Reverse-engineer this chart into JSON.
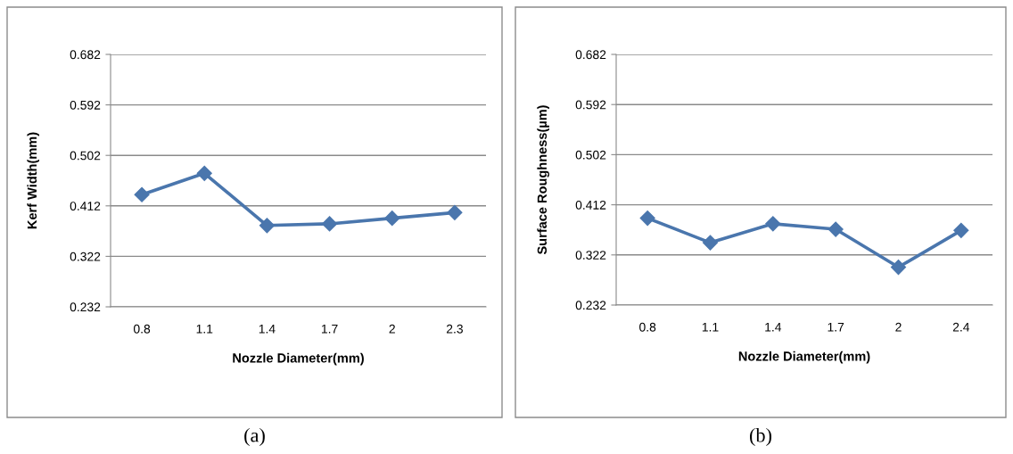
{
  "chart_data": [
    {
      "type": "line",
      "ylabel": "Kerf Width(mm)",
      "xlabel": "Nozzle Diameter(mm)",
      "annotations": [
        "(a)"
      ],
      "categories": [
        "0.8",
        "1.1",
        "1.4",
        "1.7",
        "2",
        "2.3"
      ],
      "series": [
        {
          "color": "#4a76ad",
          "values": [
            0.432,
            0.47,
            0.377,
            0.38,
            0.39,
            0.4
          ]
        }
      ],
      "ylim": [
        0.232,
        0.682
      ],
      "yticks": [
        0.232,
        0.322,
        0.412,
        0.502,
        0.592,
        0.682
      ],
      "grid": "y",
      "marker": "diamond",
      "line_style": "solid"
    },
    {
      "type": "line",
      "ylabel": "Surface Roughness(µm)",
      "xlabel": "Nozzle Diameter(mm)",
      "annotations": [
        "(b)"
      ],
      "categories": [
        "0.8",
        "1.1",
        "1.4",
        "1.7",
        "2",
        "2.4"
      ],
      "series": [
        {
          "color": "#4a76ad",
          "values": [
            0.388,
            0.344,
            0.378,
            0.368,
            0.3,
            0.366
          ]
        }
      ],
      "ylim": [
        0.232,
        0.682
      ],
      "yticks": [
        0.232,
        0.322,
        0.412,
        0.502,
        0.592,
        0.682
      ],
      "grid": "y",
      "marker": "diamond",
      "line_style": "solid"
    }
  ]
}
